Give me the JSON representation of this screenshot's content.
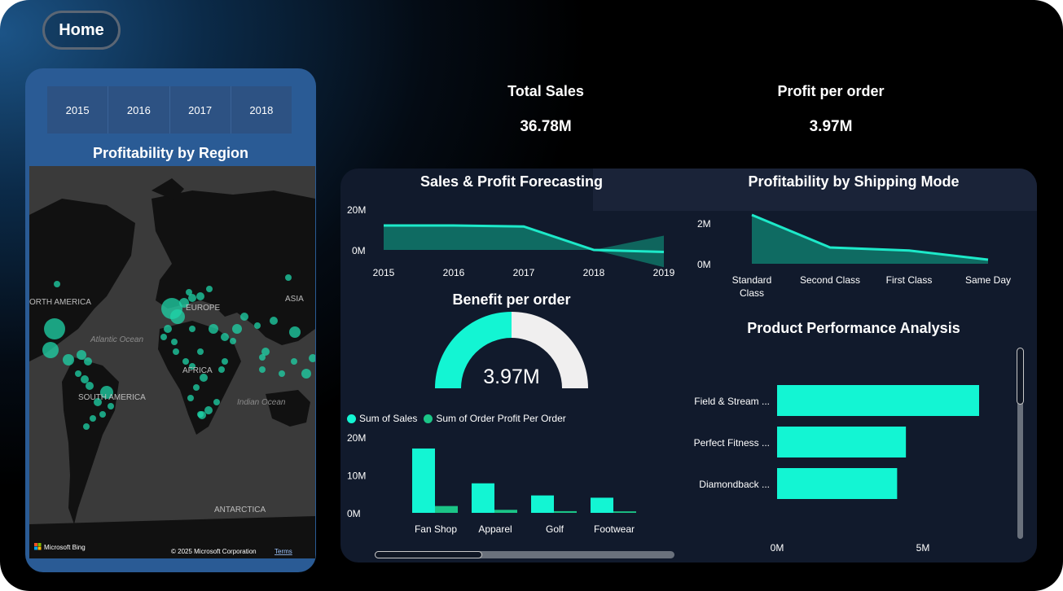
{
  "nav": {
    "home_label": "Home"
  },
  "years": [
    "2015",
    "2016",
    "2017",
    "2018"
  ],
  "map_panel": {
    "title": "Profitability by Region",
    "labels": {
      "north_america": "ORTH AMERICA",
      "europe": "EUROPE",
      "asia": "ASIA",
      "atlantic": "Atlantic Ocean",
      "africa": "AFRICA",
      "south_america": "SOUTH AMERICA",
      "indian": "Indian Ocean",
      "antarctica": "ANTARCTICA"
    },
    "footer": {
      "brand": "Microsoft Bing",
      "copyright": "© 2025 Microsoft Corporation",
      "terms": "Terms"
    }
  },
  "kpis": {
    "total_sales": {
      "label": "Total Sales",
      "value": "36.78M"
    },
    "profit_per_order": {
      "label": "Profit per order",
      "value": "3.97M"
    }
  },
  "colors": {
    "accent": "#1de9c9",
    "bar": "#13f5d3",
    "bar_secondary": "#1bc587",
    "card": "#111a2c",
    "gauge_rest": "#f0efef"
  },
  "chart_data": [
    {
      "type": "area",
      "title": "Sales & Profit Forecasting",
      "x": [
        "2015",
        "2016",
        "2017",
        "2018",
        "2019"
      ],
      "series": [
        {
          "values": [
            12000000,
            12000000,
            11500000,
            0,
            -1000000
          ]
        }
      ],
      "forecast_band": {
        "x": [
          "2018",
          "2019"
        ],
        "upper": [
          0,
          7000000
        ],
        "lower": [
          0,
          -8500000
        ]
      },
      "yticks": [
        "20M",
        "0M"
      ],
      "ylim": [
        0,
        20000000
      ]
    },
    {
      "type": "area",
      "title": "Profitability by Shipping Mode",
      "categories": [
        "Standard Class",
        "Second Class",
        "First Class",
        "Same Day"
      ],
      "category_lines": [
        [
          "Standard",
          "Class"
        ],
        [
          "Second Class"
        ],
        [
          "First Class"
        ],
        [
          "Same Day"
        ]
      ],
      "values": [
        2400000,
        800000,
        650000,
        200000
      ],
      "yticks": [
        "2M",
        "0M"
      ],
      "ylim": [
        0,
        2000000
      ]
    },
    {
      "type": "gauge",
      "title": "Benefit per order",
      "value_label": "3.97M",
      "fill_fraction": 0.5
    },
    {
      "type": "bar",
      "categories": [
        "Fan Shop",
        "Apparel",
        "Golf",
        "Footwear"
      ],
      "series": [
        {
          "name": "Sum of Sales",
          "values": [
            17000000,
            7800000,
            4600000,
            4000000
          ]
        },
        {
          "name": "Sum of Order Profit Per Order",
          "values": [
            1800000,
            800000,
            450000,
            400000
          ]
        }
      ],
      "yticks": [
        "20M",
        "10M",
        "0M"
      ],
      "ylim": [
        0,
        20000000
      ]
    },
    {
      "type": "bar",
      "orientation": "horizontal",
      "title": "Product Performance Analysis",
      "categories": [
        "Field & Stream ...",
        "Perfect Fitness ...",
        "Diamondback ..."
      ],
      "values": [
        6900000,
        4400000,
        4100000
      ],
      "xticks": [
        "0M",
        "5M"
      ],
      "xlim": [
        0,
        6900000
      ]
    }
  ]
}
